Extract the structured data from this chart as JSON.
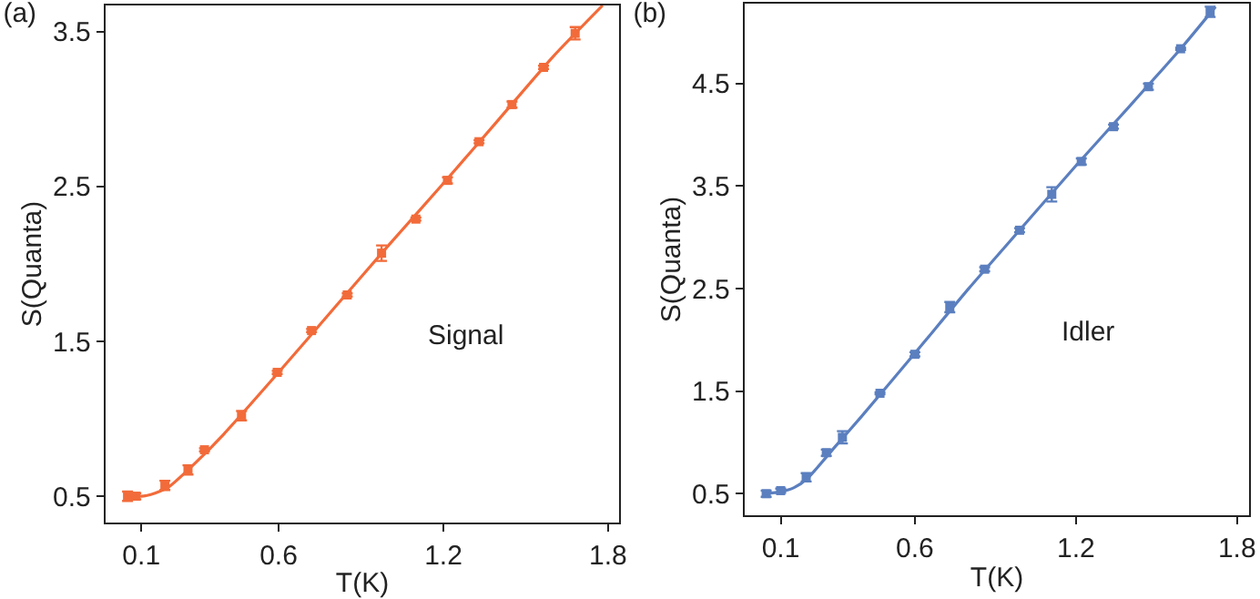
{
  "chart_data": [
    {
      "type": "scatter",
      "title": "(a)",
      "xlabel": "T(K)",
      "ylabel": "S(Quanta)",
      "annotations": [
        "Signal"
      ],
      "xlim": [
        -0.03,
        1.84
      ],
      "xticks": [
        0.1,
        0.6,
        1.2,
        1.8
      ],
      "ylim": [
        0.33,
        3.67
      ],
      "yticks": [
        0.5,
        1.5,
        2.5,
        3.5
      ],
      "grid": false,
      "series": [
        {
          "marker": "square",
          "color": "#f26b3a",
          "x": [
            0.05,
            0.08,
            0.186,
            0.27,
            0.33,
            0.465,
            0.595,
            0.72,
            0.85,
            0.975,
            1.1,
            1.215,
            1.33,
            1.45,
            1.565,
            1.68
          ],
          "values": [
            0.5,
            0.5,
            0.57,
            0.67,
            0.8,
            1.02,
            1.3,
            1.57,
            1.8,
            2.07,
            2.29,
            2.54,
            2.79,
            3.03,
            3.27,
            3.49
          ],
          "errors": [
            0.03,
            0.02,
            0.03,
            0.03,
            0.01,
            0.03,
            0.01,
            0.01,
            0.01,
            0.05,
            0.01,
            0.02,
            0.01,
            0.02,
            0.01,
            0.04
          ]
        },
        {
          "type": "line",
          "marker": "none",
          "color": "#f26b3a",
          "x": [
            0.04,
            0.1,
            0.15,
            0.2,
            0.3,
            0.4,
            0.6,
            0.8,
            1.0,
            1.2,
            1.4,
            1.6,
            1.78
          ],
          "values": [
            0.52,
            0.5,
            0.52,
            0.56,
            0.72,
            0.9,
            1.3,
            1.71,
            2.12,
            2.52,
            2.93,
            3.34,
            3.67
          ]
        }
      ]
    },
    {
      "type": "scatter",
      "title": "(b)",
      "xlabel": "T(K)",
      "ylabel": "S(Quanta)",
      "annotations": [
        "Idler"
      ],
      "xlim": [
        -0.034,
        1.845
      ],
      "xticks": [
        0.1,
        0.6,
        1.2,
        1.8
      ],
      "ylim": [
        0.29,
        5.28
      ],
      "yticks": [
        0.5,
        1.5,
        2.5,
        3.5,
        4.5
      ],
      "grid": false,
      "series": [
        {
          "marker": "square",
          "color": "#5b7fbf",
          "x": [
            0.046,
            0.1,
            0.195,
            0.27,
            0.33,
            0.47,
            0.6,
            0.73,
            0.86,
            0.99,
            1.11,
            1.22,
            1.34,
            1.47,
            1.59,
            1.7
          ],
          "values": [
            0.5,
            0.53,
            0.66,
            0.9,
            1.05,
            1.48,
            1.86,
            2.32,
            2.69,
            3.07,
            3.42,
            3.74,
            4.08,
            4.47,
            4.84,
            5.2
          ],
          "errors": [
            0.03,
            0.02,
            0.04,
            0.03,
            0.06,
            0.01,
            0.02,
            0.05,
            0.02,
            0.02,
            0.07,
            0.03,
            0.02,
            0.03,
            0.01,
            0.05
          ]
        },
        {
          "type": "line",
          "marker": "none",
          "color": "#5b7fbf",
          "x": [
            0.04,
            0.1,
            0.15,
            0.2,
            0.3,
            0.4,
            0.6,
            0.8,
            1.0,
            1.2,
            1.4,
            1.6,
            1.72
          ],
          "values": [
            0.5,
            0.52,
            0.56,
            0.65,
            0.95,
            1.25,
            1.87,
            2.5,
            3.1,
            3.7,
            4.28,
            4.87,
            5.25
          ]
        }
      ]
    }
  ]
}
